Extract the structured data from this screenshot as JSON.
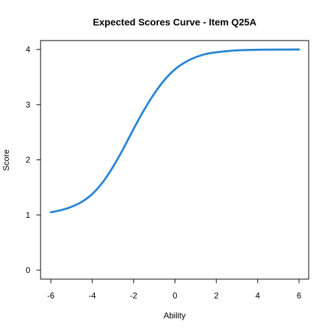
{
  "chart_data": {
    "type": "line",
    "title": "Expected Scores Curve - Item  Q25A",
    "xlabel": "Ability",
    "ylabel": "Score",
    "xlim": [
      -6,
      6
    ],
    "ylim": [
      0,
      4
    ],
    "x_ticks": [
      -6,
      -4,
      -2,
      0,
      2,
      4,
      6
    ],
    "y_ticks": [
      0,
      1,
      2,
      3,
      4
    ],
    "grid": false,
    "series": [
      {
        "color": "#2a86d6",
        "x": [
          -6.0,
          -5.5,
          -5.0,
          -4.5,
          -4.0,
          -3.5,
          -3.0,
          -2.5,
          -2.0,
          -1.5,
          -1.0,
          -0.5,
          0.0,
          0.5,
          1.0,
          1.5,
          2.0,
          2.5,
          3.0,
          3.5,
          4.0,
          4.5,
          5.0,
          5.5,
          6.0
        ],
        "y": [
          1.05,
          1.09,
          1.15,
          1.24,
          1.38,
          1.59,
          1.87,
          2.2,
          2.56,
          2.9,
          3.2,
          3.45,
          3.64,
          3.77,
          3.86,
          3.92,
          3.95,
          3.97,
          3.985,
          3.99,
          3.995,
          3.997,
          3.998,
          3.999,
          4.0
        ]
      }
    ]
  }
}
